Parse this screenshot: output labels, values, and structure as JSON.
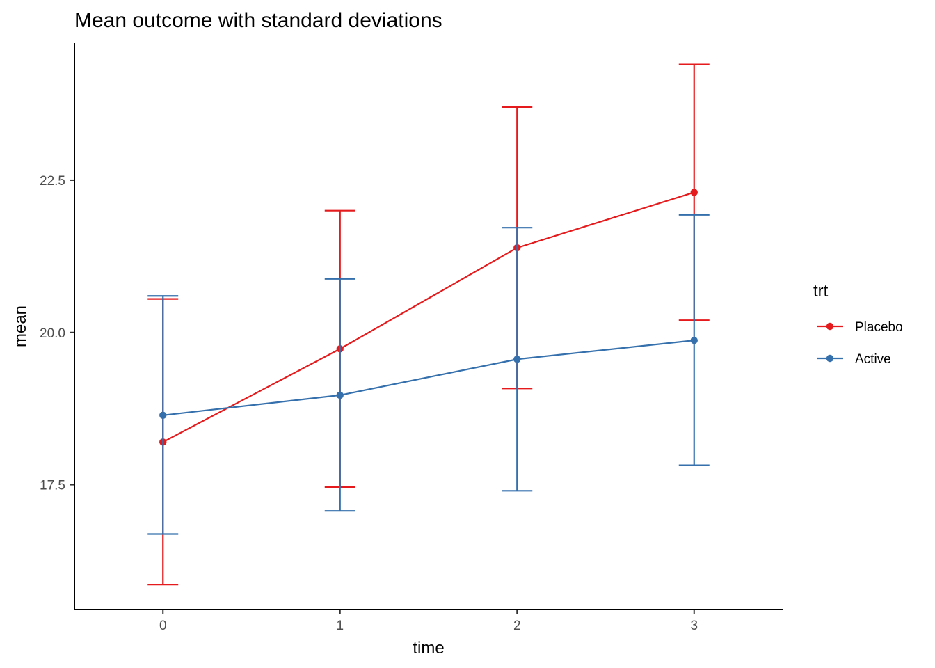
{
  "chart_data": {
    "type": "line",
    "title": "Mean outcome with standard deviations",
    "xlabel": "time",
    "ylabel": "mean",
    "x": [
      0,
      1,
      2,
      3
    ],
    "x_tick_labels": [
      "0",
      "1",
      "2",
      "3"
    ],
    "xlim": [
      -0.5,
      3.5
    ],
    "y_ticks": [
      17.5,
      20.0,
      22.5
    ],
    "y_tick_labels": [
      "17.5",
      "20.0",
      "22.5"
    ],
    "ylim": [
      15.45,
      24.75
    ],
    "grid": false,
    "legend": {
      "title": "trt",
      "position": "right"
    },
    "error_bars": "mean ± sd",
    "series": [
      {
        "name": "Placebo",
        "color": "#e41a1c",
        "values": [
          18.2,
          19.73,
          21.39,
          22.3
        ],
        "lower": [
          15.86,
          17.46,
          19.08,
          20.2
        ],
        "upper": [
          20.55,
          22.0,
          23.7,
          24.4
        ]
      },
      {
        "name": "Active",
        "color": "#3570ad",
        "values": [
          18.64,
          18.97,
          19.56,
          19.87
        ],
        "lower": [
          16.69,
          17.07,
          17.4,
          17.82
        ],
        "upper": [
          20.6,
          20.88,
          21.72,
          21.93
        ]
      }
    ]
  }
}
